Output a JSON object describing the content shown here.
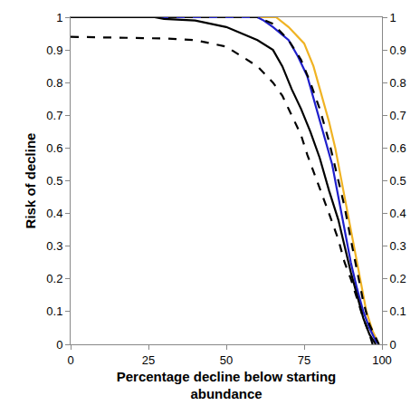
{
  "chart_data": {
    "type": "line",
    "x_label": "Percentage decline below starting abundance",
    "y_label": "Risk of decline",
    "xlim": [
      0,
      100
    ],
    "xticks": [
      0,
      25,
      50,
      75,
      100
    ],
    "ylim": [
      0,
      1
    ],
    "yticks": [
      0,
      0.1,
      0.2,
      0.3,
      0.4,
      0.5,
      0.6,
      0.7,
      0.8,
      0.9,
      1
    ],
    "y2lim": [
      0,
      1
    ],
    "y2ticks": [
      0,
      0.1,
      0.2,
      0.3,
      0.4,
      0.5,
      0.6,
      0.7,
      0.8,
      0.9,
      1
    ],
    "grid": false,
    "series": [
      {
        "color": "#f0b323",
        "line_style": "solid",
        "x": [
          0,
          66,
          70,
          75,
          78,
          80,
          83,
          85,
          87,
          89,
          91,
          93,
          95,
          97,
          99
        ],
        "values": [
          1,
          1,
          0.97,
          0.92,
          0.85,
          0.78,
          0.68,
          0.6,
          0.5,
          0.4,
          0.3,
          0.2,
          0.1,
          0.04,
          0
        ]
      },
      {
        "color": "#1f1fcc",
        "line_style": "solid",
        "x": [
          0,
          60,
          62,
          65,
          70,
          73,
          76,
          79,
          82,
          84,
          86,
          88,
          90,
          92,
          94,
          96,
          98,
          99
        ],
        "values": [
          1,
          1,
          0.99,
          0.97,
          0.93,
          0.88,
          0.82,
          0.72,
          0.62,
          0.55,
          0.45,
          0.35,
          0.25,
          0.17,
          0.1,
          0.05,
          0.01,
          0
        ]
      },
      {
        "color": "#000000",
        "line_style": "dash",
        "x": [
          0,
          60,
          65,
          70,
          74,
          77,
          80,
          83,
          86,
          88,
          90,
          92,
          94,
          96,
          98,
          99
        ],
        "values": [
          1,
          1,
          0.98,
          0.93,
          0.87,
          0.8,
          0.72,
          0.62,
          0.5,
          0.42,
          0.32,
          0.22,
          0.13,
          0.06,
          0.02,
          0
        ]
      },
      {
        "color": "#000000",
        "line_style": "solid",
        "x": [
          0,
          27,
          30,
          40,
          50,
          55,
          60,
          65,
          68,
          71,
          74,
          77,
          80,
          83,
          86,
          88,
          90,
          92,
          94,
          96,
          98
        ],
        "values": [
          1,
          1,
          0.995,
          0.99,
          0.97,
          0.95,
          0.93,
          0.9,
          0.85,
          0.78,
          0.72,
          0.65,
          0.57,
          0.47,
          0.38,
          0.3,
          0.22,
          0.15,
          0.08,
          0.03,
          0
        ]
      },
      {
        "color": "#000000",
        "line_style": "dash",
        "x": [
          0,
          30,
          40,
          45,
          50,
          55,
          60,
          65,
          68,
          71,
          74,
          76,
          78,
          80,
          83,
          86,
          88,
          90,
          92,
          94,
          96,
          97
        ],
        "values": [
          0.94,
          0.935,
          0.93,
          0.92,
          0.91,
          0.88,
          0.85,
          0.8,
          0.76,
          0.7,
          0.64,
          0.58,
          0.53,
          0.48,
          0.4,
          0.32,
          0.25,
          0.2,
          0.14,
          0.08,
          0.03,
          0
        ]
      }
    ]
  }
}
